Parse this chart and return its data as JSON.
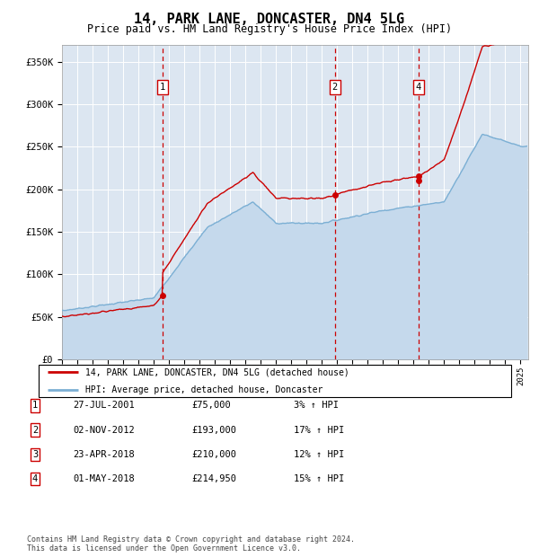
{
  "title": "14, PARK LANE, DONCASTER, DN4 5LG",
  "subtitle": "Price paid vs. HM Land Registry's House Price Index (HPI)",
  "ylabel_ticks": [
    "£0",
    "£50K",
    "£100K",
    "£150K",
    "£200K",
    "£250K",
    "£300K",
    "£350K"
  ],
  "ytick_vals": [
    0,
    50000,
    100000,
    150000,
    200000,
    250000,
    300000,
    350000
  ],
  "ylim": [
    0,
    370000
  ],
  "xlim_start": 1995.0,
  "xlim_end": 2025.5,
  "background_color": "#dce6f1",
  "grid_color": "#ffffff",
  "hpi_line_color": "#7bafd4",
  "hpi_fill_color": "#c5d9ec",
  "price_line_color": "#cc0000",
  "sale_marker_color": "#cc0000",
  "dashed_line_color": "#cc0000",
  "transactions": [
    {
      "num": 1,
      "date_str": "27-JUL-2001",
      "date_x": 2001.57,
      "price": 75000,
      "hpi_pct": "3%"
    },
    {
      "num": 2,
      "date_str": "02-NOV-2012",
      "date_x": 2012.84,
      "price": 193000,
      "hpi_pct": "17%"
    },
    {
      "num": 3,
      "date_str": "23-APR-2018",
      "date_x": 2018.31,
      "price": 210000,
      "hpi_pct": "12%"
    },
    {
      "num": 4,
      "date_str": "01-MAY-2018",
      "date_x": 2018.33,
      "price": 214950,
      "hpi_pct": "15%"
    }
  ],
  "trans_shown_nums": [
    1,
    2,
    4
  ],
  "legend_entries": [
    "14, PARK LANE, DONCASTER, DN4 5LG (detached house)",
    "HPI: Average price, detached house, Doncaster"
  ],
  "footnote": "Contains HM Land Registry data © Crown copyright and database right 2024.\nThis data is licensed under the Open Government Licence v3.0.",
  "table_rows": [
    [
      "1",
      "27-JUL-2001",
      "£75,000",
      "3% ↑ HPI"
    ],
    [
      "2",
      "02-NOV-2012",
      "£193,000",
      "17% ↑ HPI"
    ],
    [
      "3",
      "23-APR-2018",
      "£210,000",
      "12% ↑ HPI"
    ],
    [
      "4",
      "01-MAY-2018",
      "£214,950",
      "15% ↑ HPI"
    ]
  ],
  "hpi_segments": [
    [
      1995.0,
      57000
    ],
    [
      2001.0,
      72000
    ],
    [
      2004.5,
      155000
    ],
    [
      2007.5,
      185000
    ],
    [
      2009.0,
      160000
    ],
    [
      2012.0,
      160000
    ],
    [
      2016.0,
      175000
    ],
    [
      2020.0,
      185000
    ],
    [
      2022.5,
      265000
    ],
    [
      2025.0,
      250000
    ]
  ]
}
